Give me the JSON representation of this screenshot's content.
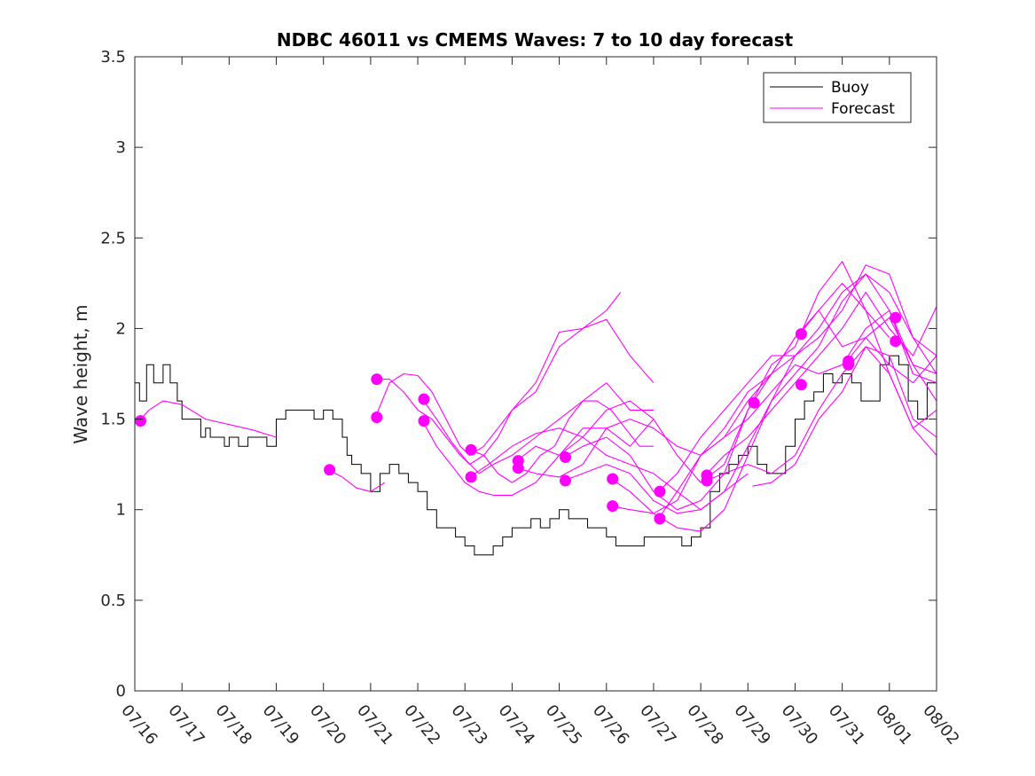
{
  "chart_data": {
    "type": "line",
    "title": "NDBC 46011 vs CMEMS Waves: 7 to 10 day forecast",
    "xlabel": "",
    "ylabel": "Wave height, m",
    "x_ticks": [
      "07/16",
      "07/17",
      "07/18",
      "07/19",
      "07/20",
      "07/21",
      "07/22",
      "07/23",
      "07/24",
      "07/25",
      "07/26",
      "07/27",
      "07/28",
      "07/29",
      "07/30",
      "07/31",
      "08/01",
      "08/02"
    ],
    "y_ticks": [
      "0",
      "0.5",
      "1",
      "1.5",
      "2",
      "2.5",
      "3",
      "3.5"
    ],
    "xlim_days": [
      0,
      17
    ],
    "ylim": [
      0,
      3.5
    ],
    "grid": false,
    "legend": {
      "position": "top-right",
      "entries": [
        "Buoy",
        "Forecast"
      ]
    },
    "colors": {
      "buoy": "#000000",
      "forecast": "#ff00ff"
    },
    "buoy": {
      "name": "Buoy",
      "x": [
        0.0,
        0.1,
        0.25,
        0.4,
        0.6,
        0.75,
        0.9,
        1.0,
        1.1,
        1.25,
        1.4,
        1.5,
        1.6,
        1.75,
        1.9,
        2.0,
        2.2,
        2.4,
        2.6,
        2.8,
        3.0,
        3.2,
        3.4,
        3.6,
        3.8,
        4.0,
        4.2,
        4.4,
        4.5,
        4.6,
        4.8,
        5.0,
        5.2,
        5.4,
        5.6,
        5.8,
        6.0,
        6.2,
        6.4,
        6.6,
        6.8,
        7.0,
        7.2,
        7.4,
        7.6,
        7.8,
        8.0,
        8.2,
        8.4,
        8.6,
        8.8,
        9.0,
        9.2,
        9.4,
        9.6,
        9.8,
        10.0,
        10.2,
        10.4,
        10.6,
        10.8,
        11.0,
        11.2,
        11.4,
        11.6,
        11.8,
        12.0,
        12.2,
        12.4,
        12.6,
        12.8,
        13.0,
        13.2,
        13.4,
        13.6,
        13.8,
        14.0,
        14.2,
        14.4,
        14.6,
        14.8,
        15.0,
        15.2,
        15.4,
        15.6,
        15.8,
        16.0,
        16.2,
        16.4,
        16.6,
        16.8,
        17.0
      ],
      "y": [
        1.7,
        1.6,
        1.8,
        1.7,
        1.8,
        1.7,
        1.6,
        1.5,
        1.5,
        1.5,
        1.4,
        1.45,
        1.4,
        1.4,
        1.35,
        1.4,
        1.35,
        1.4,
        1.4,
        1.35,
        1.5,
        1.55,
        1.55,
        1.55,
        1.5,
        1.55,
        1.5,
        1.4,
        1.3,
        1.25,
        1.2,
        1.1,
        1.2,
        1.25,
        1.2,
        1.15,
        1.1,
        1.0,
        0.9,
        0.9,
        0.85,
        0.8,
        0.75,
        0.75,
        0.8,
        0.85,
        0.9,
        0.9,
        0.95,
        0.9,
        0.95,
        1.0,
        0.95,
        0.95,
        0.9,
        0.9,
        0.85,
        0.8,
        0.8,
        0.8,
        0.85,
        0.85,
        0.85,
        0.85,
        0.8,
        0.85,
        0.9,
        1.1,
        1.2,
        1.25,
        1.3,
        1.35,
        1.25,
        1.2,
        1.2,
        1.35,
        1.5,
        1.6,
        1.65,
        1.75,
        1.7,
        1.75,
        1.7,
        1.6,
        1.6,
        1.8,
        1.85,
        1.8,
        1.6,
        1.5,
        1.7,
        1.75
      ]
    },
    "forecast": {
      "name": "Forecast",
      "lines": [
        {
          "x": [
            0.05,
            0.3,
            0.6,
            1.0,
            1.5,
            2.0,
            2.5,
            3.0
          ],
          "y": [
            1.48,
            1.55,
            1.6,
            1.58,
            1.5,
            1.47,
            1.44,
            1.4
          ]
        },
        {
          "x": [
            4.1,
            4.4,
            4.7,
            5.0,
            5.3
          ],
          "y": [
            1.22,
            1.18,
            1.12,
            1.1,
            1.15
          ]
        },
        {
          "x": [
            5.1,
            5.4,
            5.7,
            6.0,
            6.3,
            6.6,
            6.9,
            7.1,
            7.4,
            7.7,
            8.0,
            8.5,
            9.0,
            9.5,
            10.0,
            10.3
          ],
          "y": [
            1.51,
            1.7,
            1.75,
            1.74,
            1.65,
            1.5,
            1.35,
            1.3,
            1.35,
            1.45,
            1.55,
            1.7,
            1.98,
            2.0,
            2.1,
            2.2
          ]
        },
        {
          "x": [
            5.1,
            5.4,
            5.7,
            6.0,
            6.3,
            6.6,
            6.9,
            7.1,
            7.4,
            7.7,
            8.0,
            8.5,
            9.0,
            9.5,
            10.0,
            10.5,
            11.0
          ],
          "y": [
            1.72,
            1.72,
            1.65,
            1.55,
            1.5,
            1.4,
            1.3,
            1.25,
            1.3,
            1.4,
            1.55,
            1.65,
            1.9,
            2.0,
            2.05,
            1.85,
            1.7
          ]
        },
        {
          "x": [
            6.1,
            6.4,
            6.7,
            7.0,
            7.3,
            7.6,
            8.0,
            8.5,
            9.0,
            9.5,
            10.0,
            10.5,
            11.0
          ],
          "y": [
            1.61,
            1.5,
            1.38,
            1.28,
            1.2,
            1.25,
            1.3,
            1.4,
            1.5,
            1.6,
            1.7,
            1.55,
            1.55
          ]
        },
        {
          "x": [
            6.1,
            6.4,
            6.7,
            7.0,
            7.3,
            7.6,
            8.0,
            8.5,
            9.0,
            9.5,
            10.0,
            10.5,
            11.0
          ],
          "y": [
            1.49,
            1.35,
            1.25,
            1.15,
            1.1,
            1.08,
            1.08,
            1.15,
            1.3,
            1.45,
            1.45,
            1.35,
            1.5
          ]
        },
        {
          "x": [
            7.1,
            7.4,
            7.7,
            8.0,
            8.3,
            8.6,
            8.9,
            9.2,
            9.5,
            9.8,
            10.1,
            10.4,
            10.7,
            11.0
          ],
          "y": [
            1.33,
            1.3,
            1.2,
            1.15,
            1.2,
            1.3,
            1.35,
            1.5,
            1.6,
            1.6,
            1.55,
            1.45,
            1.35,
            1.35
          ]
        },
        {
          "x": [
            7.1,
            7.5,
            8.0,
            8.5,
            9.0,
            9.5,
            10.0,
            10.5,
            11.0,
            11.5,
            12.0,
            12.5,
            13.0
          ],
          "y": [
            1.18,
            1.25,
            1.35,
            1.42,
            1.45,
            1.4,
            1.3,
            1.25,
            1.2,
            1.1,
            1.0,
            1.1,
            1.2
          ]
        },
        {
          "x": [
            8.1,
            8.5,
            9.0,
            9.5,
            10.0,
            10.5,
            11.0,
            11.5,
            12.0,
            12.5,
            13.0,
            13.5,
            14.0
          ],
          "y": [
            1.27,
            1.35,
            1.3,
            1.4,
            1.55,
            1.6,
            1.5,
            1.3,
            1.15,
            1.25,
            1.55,
            1.75,
            1.85
          ]
        },
        {
          "x": [
            8.1,
            8.5,
            9.0,
            9.5,
            10.0,
            10.5,
            11.0,
            11.5,
            12.0,
            12.5,
            13.0,
            13.5,
            14.0
          ],
          "y": [
            1.23,
            1.2,
            1.18,
            1.25,
            1.45,
            1.5,
            1.45,
            1.35,
            1.3,
            1.4,
            1.6,
            1.75,
            1.95
          ]
        },
        {
          "x": [
            9.1,
            9.5,
            10.0,
            10.5,
            11.0,
            11.5,
            12.0,
            12.5,
            13.0,
            13.5,
            14.0,
            14.5,
            15.0,
            15.5,
            16.0
          ],
          "y": [
            1.29,
            1.35,
            1.4,
            1.3,
            1.1,
            1.0,
            1.05,
            1.2,
            1.55,
            1.8,
            1.9,
            2.2,
            2.37,
            2.1,
            1.95
          ]
        },
        {
          "x": [
            9.1,
            9.5,
            10.0,
            10.5,
            11.0,
            11.5,
            12.0,
            12.5,
            13.0,
            13.5,
            14.0,
            14.5,
            15.0,
            15.5,
            16.0,
            16.5,
            17.0
          ],
          "y": [
            1.16,
            1.2,
            1.25,
            1.2,
            1.05,
            0.98,
            1.0,
            1.1,
            1.35,
            1.6,
            1.85,
            1.95,
            2.1,
            2.35,
            2.3,
            1.95,
            1.75
          ]
        },
        {
          "x": [
            10.1,
            10.5,
            11.0,
            11.5,
            12.0,
            12.5,
            13.0,
            13.5,
            14.0,
            14.5,
            15.0,
            15.5,
            16.0,
            16.5,
            17.0
          ],
          "y": [
            1.17,
            1.1,
            0.98,
            0.9,
            0.88,
            1.0,
            1.3,
            1.6,
            1.75,
            1.9,
            2.15,
            2.3,
            2.2,
            1.95,
            1.85
          ]
        },
        {
          "x": [
            10.1,
            10.5,
            11.0,
            11.5,
            12.0,
            12.5,
            13.0,
            13.5,
            14.0,
            14.5,
            15.0,
            15.5,
            16.0,
            16.5,
            17.0
          ],
          "y": [
            1.02,
            1.0,
            0.98,
            1.05,
            1.3,
            1.4,
            1.5,
            1.65,
            1.8,
            1.75,
            1.8,
            2.0,
            2.1,
            1.8,
            1.6
          ]
        },
        {
          "x": [
            11.1,
            11.5,
            12.0,
            12.5,
            13.0,
            13.5,
            14.0,
            14.5,
            15.0,
            15.5,
            16.0,
            16.5,
            17.0
          ],
          "y": [
            1.1,
            1.2,
            1.4,
            1.55,
            1.7,
            1.85,
            1.85,
            2.0,
            2.2,
            2.3,
            2.1,
            1.75,
            1.7
          ]
        },
        {
          "x": [
            11.1,
            11.5,
            12.0,
            12.5,
            13.0,
            13.5,
            14.0,
            14.5,
            15.0,
            15.5,
            16.0,
            16.5,
            17.0
          ],
          "y": [
            0.95,
            1.1,
            1.3,
            1.45,
            1.65,
            1.75,
            1.95,
            2.1,
            2.25,
            2.1,
            1.75,
            1.45,
            1.55
          ]
        },
        {
          "x": [
            12.1,
            12.5,
            13.0,
            13.5,
            14.0,
            14.5,
            15.0,
            15.5,
            16.0,
            16.5,
            17.0
          ],
          "y": [
            1.19,
            1.3,
            1.4,
            1.55,
            1.7,
            1.85,
            2.0,
            2.2,
            2.0,
            1.85,
            2.12
          ]
        },
        {
          "x": [
            12.1,
            12.5,
            13.0,
            13.5,
            14.0,
            14.5,
            15.0,
            15.5,
            16.0,
            16.5,
            17.0
          ],
          "y": [
            1.16,
            1.2,
            1.25,
            1.2,
            1.3,
            1.55,
            1.75,
            1.9,
            1.75,
            1.45,
            1.3
          ]
        },
        {
          "x": [
            13.1,
            13.5,
            14.0,
            14.5,
            15.0,
            15.5,
            16.0,
            16.5,
            17.0
          ],
          "y": [
            1.13,
            1.15,
            1.25,
            1.5,
            1.65,
            1.9,
            1.85,
            1.5,
            1.4
          ]
        },
        {
          "x": [
            14.1,
            14.5,
            15.0,
            15.5,
            16.0,
            16.5,
            17.0
          ],
          "y": [
            1.97,
            2.1,
            1.9,
            1.95,
            1.8,
            1.7,
            1.85
          ]
        },
        {
          "x": [
            15.1,
            15.5,
            16.0,
            16.5,
            17.0
          ],
          "y": [
            1.82,
            1.95,
            2.06,
            1.8,
            1.75
          ]
        }
      ],
      "markers": {
        "x": [
          0.12,
          4.13,
          5.13,
          5.13,
          6.13,
          6.13,
          7.13,
          7.13,
          8.13,
          8.13,
          9.13,
          9.13,
          10.13,
          10.13,
          11.13,
          11.13,
          12.13,
          12.13,
          13.13,
          14.13,
          14.13,
          15.13,
          15.13,
          16.13,
          16.13
        ],
        "y": [
          1.49,
          1.22,
          1.72,
          1.51,
          1.61,
          1.49,
          1.33,
          1.18,
          1.27,
          1.23,
          1.29,
          1.16,
          1.17,
          1.02,
          1.1,
          0.95,
          1.19,
          1.16,
          1.59,
          1.97,
          1.69,
          1.82,
          1.8,
          2.06,
          1.93
        ]
      }
    }
  }
}
